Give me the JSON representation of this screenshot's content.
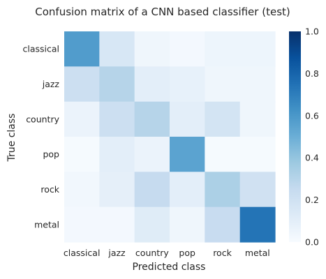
{
  "chart_data": {
    "type": "heatmap",
    "title": "Confusion matrix of a CNN based classifier (test)",
    "xlabel": "Predicted class",
    "ylabel": "True class",
    "x_categories": [
      "classical",
      "jazz",
      "country",
      "pop",
      "rock",
      "metal"
    ],
    "y_categories": [
      "classical",
      "jazz",
      "country",
      "pop",
      "rock",
      "metal"
    ],
    "values": [
      [
        0.58,
        0.16,
        0.04,
        0.02,
        0.05,
        0.05
      ],
      [
        0.22,
        0.3,
        0.1,
        0.08,
        0.04,
        0.04
      ],
      [
        0.06,
        0.22,
        0.3,
        0.1,
        0.18,
        0.04
      ],
      [
        0.01,
        0.1,
        0.06,
        0.55,
        0.01,
        0.01
      ],
      [
        0.03,
        0.09,
        0.25,
        0.1,
        0.33,
        0.2
      ],
      [
        0.02,
        0.02,
        0.12,
        0.04,
        0.24,
        0.74
      ]
    ],
    "colorbar": {
      "range": [
        0.0,
        1.0
      ],
      "ticks": [
        "0.0",
        "0.2",
        "0.4",
        "0.6",
        "0.8",
        "1.0"
      ],
      "colormap": "Blues",
      "colors": [
        "#f7fbff",
        "#deebf7",
        "#c6dbef",
        "#9ecae1",
        "#6baed6",
        "#4292c6",
        "#2171b5",
        "#08519c",
        "#08306b"
      ]
    }
  }
}
